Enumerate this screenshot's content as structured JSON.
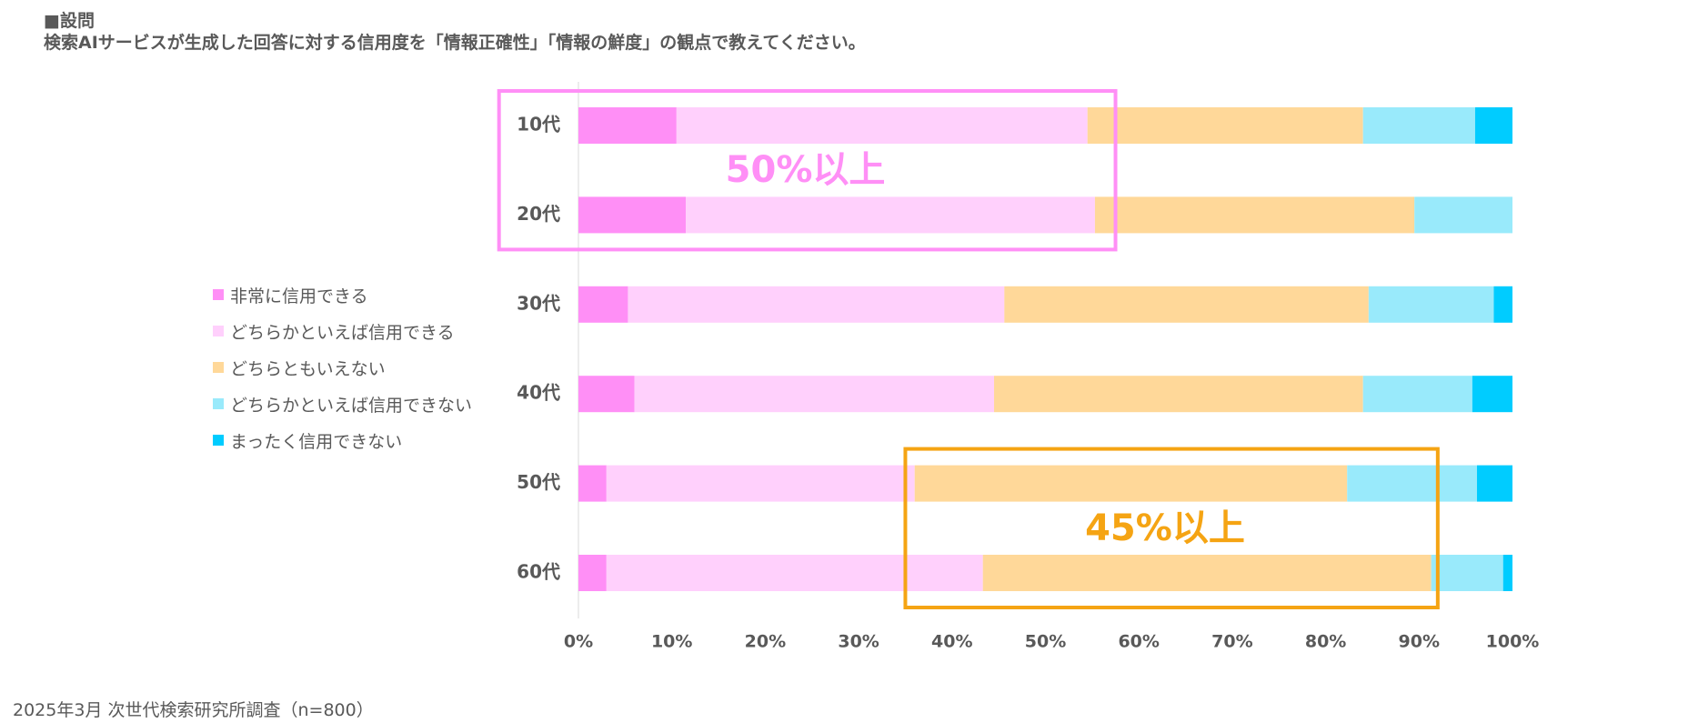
{
  "question": {
    "header": "■設問",
    "text": "検索AIサービスが生成した回答に対する信用度を「情報正確性」「情報の鮮度」の観点で教えてください。"
  },
  "source": "2025年3月 次世代検索研究所調査（n=800）",
  "chart_data": {
    "type": "bar",
    "orientation": "horizontal",
    "stacked": "percent",
    "categories": [
      "10代",
      "20代",
      "30代",
      "40代",
      "50代",
      "60代"
    ],
    "series": [
      {
        "name": "非常に信用できる",
        "color": "#ff8ff6",
        "values": [
          10.5,
          11.5,
          5.3,
          6.0,
          3.0,
          3.0
        ]
      },
      {
        "name": "どちらかといえば信用できる",
        "color": "#ffd0fc",
        "values": [
          44.0,
          43.8,
          40.3,
          38.5,
          33.0,
          40.3
        ]
      },
      {
        "name": "どちらともいえない",
        "color": "#ffd899",
        "values": [
          29.5,
          34.2,
          39.0,
          39.5,
          46.3,
          48.0
        ]
      },
      {
        "name": "どちらかといえば信用できない",
        "color": "#99eafb",
        "values": [
          12.0,
          10.5,
          13.4,
          11.7,
          13.9,
          7.7
        ]
      },
      {
        "name": "まったく信用できない",
        "color": "#00ccff",
        "values": [
          4.0,
          0.0,
          2.0,
          4.3,
          3.8,
          1.0
        ]
      }
    ],
    "xlim": [
      0,
      100
    ],
    "xticks": [
      "0%",
      "10%",
      "20%",
      "30%",
      "40%",
      "50%",
      "60%",
      "70%",
      "80%",
      "90%",
      "100%"
    ],
    "grid": false,
    "legend_position": "left",
    "annotations": [
      {
        "text": "50%以上",
        "color": "#ff8ff6",
        "rows": [
          "10代",
          "20代"
        ],
        "x_range": [
          -8.5,
          57.5
        ]
      },
      {
        "text": "45%以上",
        "color": "#f5a413",
        "rows": [
          "50代",
          "60代"
        ],
        "x_range": [
          35,
          92
        ]
      }
    ]
  }
}
